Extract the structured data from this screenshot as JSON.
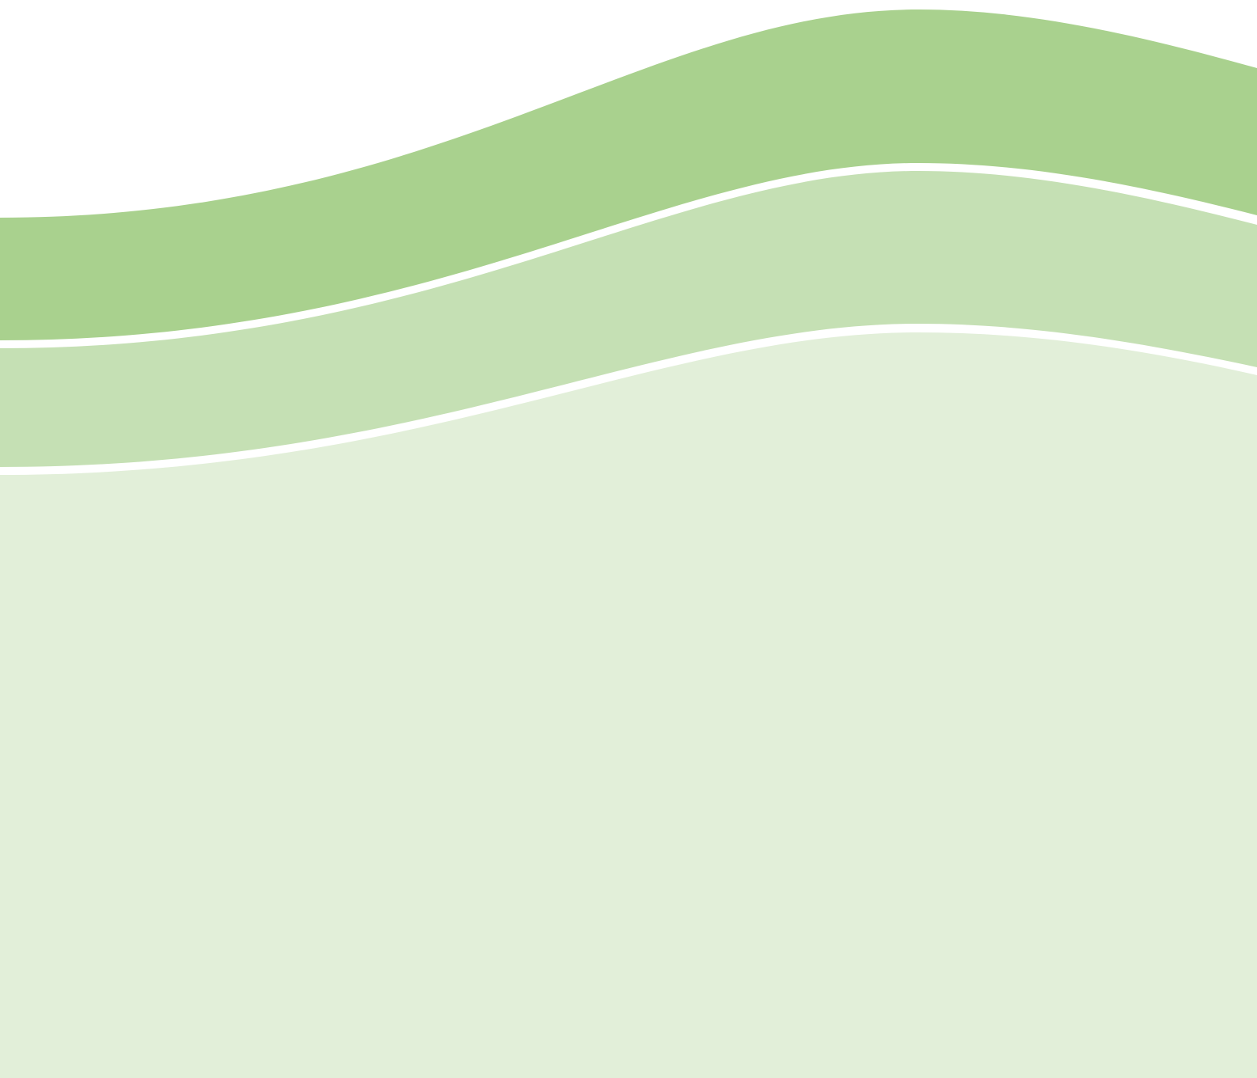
{
  "background_color": "#ffffff",
  "bands": [
    {
      "name": "dark-green-wave",
      "color": "#a9d18e"
    },
    {
      "name": "medium-green-wave",
      "color": "#c5e0b4"
    },
    {
      "name": "light-green-wave",
      "color": "#e2efd9"
    }
  ],
  "separator_color": "#ffffff"
}
